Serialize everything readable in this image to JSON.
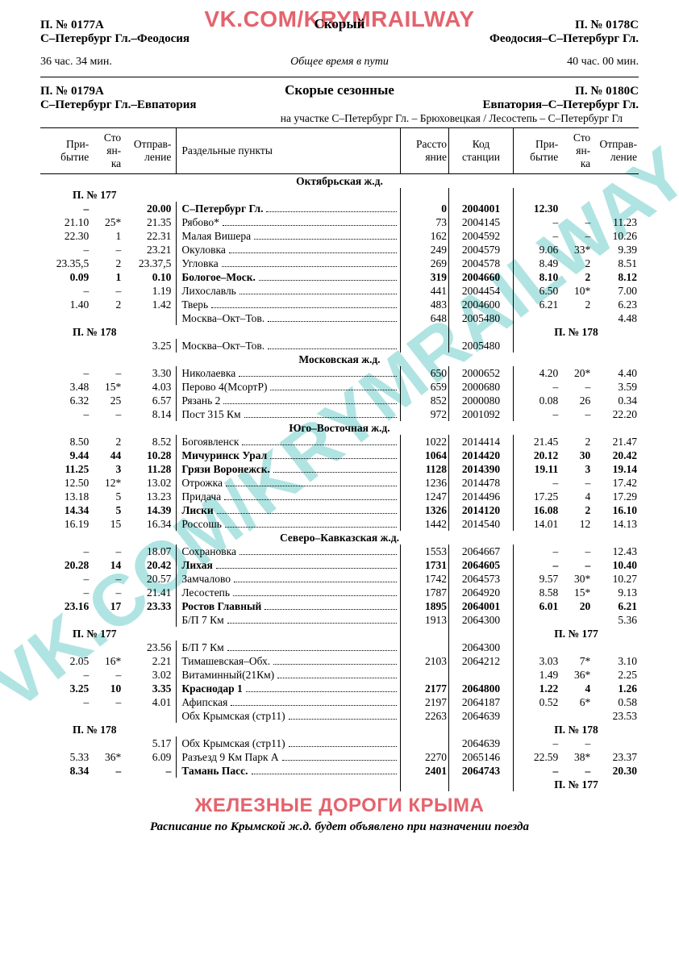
{
  "watermark_top": "VK.COM/KRYMRAILWAY",
  "watermark_diag": "VK.COM/KRYMRAILWAY",
  "watermark_bottom": "ЖЕЛЕЗНЫЕ ДОРОГИ КРЫМА",
  "footer_note": "Расписание по Крымской ж.д. будет объявлено при назначении поезда",
  "block1": {
    "left_num": "П. № 0177А",
    "type": "Скорый",
    "right_num": "П. № 0178С",
    "left_route": "С–Петербург Гл.–Феодосия",
    "right_route": "Феодосия–С–Петербург Гл.",
    "left_time": "36 час. 34 мин.",
    "time_label": "Общее время в пути",
    "right_time": "40 час. 00 мин."
  },
  "block2": {
    "left_num": "П. № 0179А",
    "type": "Скорые сезонные",
    "right_num": "П. № 0180С",
    "left_route": "С–Петербург Гл.–Евпатория",
    "right_route": "Евпатория–С–Петербург Гл.",
    "subnote": "на участке С–Петербург Гл. – Брюховецкая / Лесостепь – С–Петербург Гл"
  },
  "columns": {
    "arr": "При-\nбытие",
    "stop": "Сто\nян-\nка",
    "dep": "Отправ-\nление",
    "name": "Раздельные пункты",
    "dist": "Рассто\nяние",
    "code": "Код\nстанции",
    "arr2": "При-\nбытие",
    "stop2": "Сто\nян-\nка",
    "dep2": "Отправ-\nление"
  },
  "sections": [
    {
      "title": "Октябрьская ж.д.",
      "train_left": "П. № 177",
      "rows": [
        {
          "a": "–",
          "s": "",
          "d": "20.00",
          "n": "С–Петербург Гл.",
          "di": "0",
          "co": "2004001",
          "a2": "12.30",
          "s2": "",
          "d2": "",
          "b": 1
        },
        {
          "a": "21.10",
          "s": "25*",
          "d": "21.35",
          "n": "Рябово*",
          "di": "73",
          "co": "2004145",
          "a2": "–",
          "s2": "–",
          "d2": "11.23"
        },
        {
          "a": "22.30",
          "s": "1",
          "d": "22.31",
          "n": "Малая Вишера",
          "di": "162",
          "co": "2004592",
          "a2": "–",
          "s2": "–",
          "d2": "10.26"
        },
        {
          "a": "–",
          "s": "–",
          "d": "23.21",
          "n": "Окуловка",
          "di": "249",
          "co": "2004579",
          "a2": "9.06",
          "s2": "33*",
          "d2": "9.39"
        },
        {
          "a": "23.35,5",
          "s": "2",
          "d": "23.37,5",
          "n": "Угловка",
          "di": "269",
          "co": "2004578",
          "a2": "8.49",
          "s2": "2",
          "d2": "8.51"
        },
        {
          "a": "0.09",
          "s": "1",
          "d": "0.10",
          "n": "Бологое–Моск.",
          "di": "319",
          "co": "2004660",
          "a2": "8.10",
          "s2": "2",
          "d2": "8.12",
          "b": 1
        },
        {
          "a": "–",
          "s": "–",
          "d": "1.19",
          "n": "Лихославль",
          "di": "441",
          "co": "2004454",
          "a2": "6.50",
          "s2": "10*",
          "d2": "7.00"
        },
        {
          "a": "1.40",
          "s": "2",
          "d": "1.42",
          "n": "Тверь",
          "di": "483",
          "co": "2004600",
          "a2": "6.21",
          "s2": "2",
          "d2": "6.23"
        },
        {
          "a": "",
          "s": "",
          "d": "",
          "n": "Москва–Окт–Тов.",
          "di": "648",
          "co": "2005480",
          "a2": "",
          "s2": "",
          "d2": "4.48"
        }
      ],
      "train_left2": "П. № 178",
      "train_right2": "П. № 178",
      "rows2": [
        {
          "a": "",
          "s": "",
          "d": "3.25",
          "n": "Москва–Окт–Тов.",
          "di": "",
          "co": "2005480",
          "a2": "",
          "s2": "",
          "d2": ""
        }
      ]
    },
    {
      "title": "Московская ж.д.",
      "rows": [
        {
          "a": "–",
          "s": "–",
          "d": "3.30",
          "n": "Николаевка",
          "di": "650",
          "co": "2000652",
          "a2": "4.20",
          "s2": "20*",
          "d2": "4.40"
        },
        {
          "a": "3.48",
          "s": "15*",
          "d": "4.03",
          "n": "Перово 4(МсортР)",
          "di": "659",
          "co": "2000680",
          "a2": "–",
          "s2": "–",
          "d2": "3.59"
        },
        {
          "a": "6.32",
          "s": "25",
          "d": "6.57",
          "n": "Рязань 2",
          "di": "852",
          "co": "2000080",
          "a2": "0.08",
          "s2": "26",
          "d2": "0.34"
        },
        {
          "a": "–",
          "s": "–",
          "d": "8.14",
          "n": "Пост 315 Км",
          "di": "972",
          "co": "2001092",
          "a2": "–",
          "s2": "–",
          "d2": "22.20"
        }
      ]
    },
    {
      "title": "Юго–Восточная ж.д.",
      "rows": [
        {
          "a": "8.50",
          "s": "2",
          "d": "8.52",
          "n": "Богоявленск",
          "di": "1022",
          "co": "2014414",
          "a2": "21.45",
          "s2": "2",
          "d2": "21.47"
        },
        {
          "a": "9.44",
          "s": "44",
          "d": "10.28",
          "n": "Мичуринск Урал",
          "di": "1064",
          "co": "2014420",
          "a2": "20.12",
          "s2": "30",
          "d2": "20.42",
          "b": 1
        },
        {
          "a": "11.25",
          "s": "3",
          "d": "11.28",
          "n": "Грязи Воронежск.",
          "di": "1128",
          "co": "2014390",
          "a2": "19.11",
          "s2": "3",
          "d2": "19.14",
          "b": 1
        },
        {
          "a": "12.50",
          "s": "12*",
          "d": "13.02",
          "n": "Отрожка",
          "di": "1236",
          "co": "2014478",
          "a2": "–",
          "s2": "–",
          "d2": "17.42"
        },
        {
          "a": "13.18",
          "s": "5",
          "d": "13.23",
          "n": "Придача",
          "di": "1247",
          "co": "2014496",
          "a2": "17.25",
          "s2": "4",
          "d2": "17.29"
        },
        {
          "a": "14.34",
          "s": "5",
          "d": "14.39",
          "n": "Лиски",
          "di": "1326",
          "co": "2014120",
          "a2": "16.08",
          "s2": "2",
          "d2": "16.10",
          "b": 1
        },
        {
          "a": "16.19",
          "s": "15",
          "d": "16.34",
          "n": "Россошь",
          "di": "1442",
          "co": "2014540",
          "a2": "14.01",
          "s2": "12",
          "d2": "14.13"
        }
      ]
    },
    {
      "title": "Северо–Кавказская ж.д.",
      "rows": [
        {
          "a": "–",
          "s": "–",
          "d": "18.07",
          "n": "Сохрановка",
          "di": "1553",
          "co": "2064667",
          "a2": "–",
          "s2": "–",
          "d2": "12.43"
        },
        {
          "a": "20.28",
          "s": "14",
          "d": "20.42",
          "n": "Лихая",
          "di": "1731",
          "co": "2064605",
          "a2": "–",
          "s2": "–",
          "d2": "10.40",
          "b": 1
        },
        {
          "a": "–",
          "s": "–",
          "d": "20.57",
          "n": "Замчалово",
          "di": "1742",
          "co": "2064573",
          "a2": "9.57",
          "s2": "30*",
          "d2": "10.27"
        },
        {
          "a": "–",
          "s": "–",
          "d": "21.41",
          "n": "Лесостепь",
          "di": "1787",
          "co": "2064920",
          "a2": "8.58",
          "s2": "15*",
          "d2": "9.13"
        },
        {
          "a": "23.16",
          "s": "17",
          "d": "23.33",
          "n": "Ростов Главный",
          "di": "1895",
          "co": "2064001",
          "a2": "6.01",
          "s2": "20",
          "d2": "6.21",
          "b": 1
        },
        {
          "a": "",
          "s": "",
          "d": "",
          "n": "Б/П 7 Км",
          "di": "1913",
          "co": "2064300",
          "a2": "",
          "s2": "",
          "d2": "5.36"
        }
      ],
      "train_left2": "П. № 177",
      "train_right2": "П. № 177",
      "rows2": [
        {
          "a": "",
          "s": "",
          "d": "23.56",
          "n": "Б/П 7 Км",
          "di": "",
          "co": "2064300",
          "a2": "",
          "s2": "",
          "d2": ""
        },
        {
          "a": "2.05",
          "s": "16*",
          "d": "2.21",
          "n": "Тимашевская–Обх.",
          "di": "2103",
          "co": "2064212",
          "a2": "3.03",
          "s2": "7*",
          "d2": "3.10"
        },
        {
          "a": "–",
          "s": "–",
          "d": "3.02",
          "n": "Витаминный(21Км)",
          "di": "",
          "co": "",
          "a2": "1.49",
          "s2": "36*",
          "d2": "2.25"
        },
        {
          "a": "3.25",
          "s": "10",
          "d": "3.35",
          "n": "Краснодар 1",
          "di": "2177",
          "co": "2064800",
          "a2": "1.22",
          "s2": "4",
          "d2": "1.26",
          "b": 1
        },
        {
          "a": "–",
          "s": "–",
          "d": "4.01",
          "n": "Афипская",
          "di": "2197",
          "co": "2064187",
          "a2": "0.52",
          "s2": "6*",
          "d2": "0.58"
        },
        {
          "a": "",
          "s": "",
          "d": "",
          "n": "Обх Крымская (стр11)",
          "di": "2263",
          "co": "2064639",
          "a2": "",
          "s2": "",
          "d2": "23.53"
        }
      ],
      "train_left3": "П. № 178",
      "train_right3": "П. № 178",
      "rows3": [
        {
          "a": "",
          "s": "",
          "d": "5.17",
          "n": "Обх Крымская (стр11)",
          "di": "",
          "co": "2064639",
          "a2": "–",
          "s2": "–",
          "d2": ""
        },
        {
          "a": "5.33",
          "s": "36*",
          "d": "6.09",
          "n": "Разъезд 9 Км Парк А",
          "di": "2270",
          "co": "2065146",
          "a2": "22.59",
          "s2": "38*",
          "d2": "23.37"
        },
        {
          "a": "8.34",
          "s": "–",
          "d": "–",
          "n": "Тамань Пасс.",
          "di": "2401",
          "co": "2064743",
          "a2": "–",
          "s2": "–",
          "d2": "20.30",
          "b": 1
        }
      ],
      "train_right4": "П. № 177"
    }
  ]
}
